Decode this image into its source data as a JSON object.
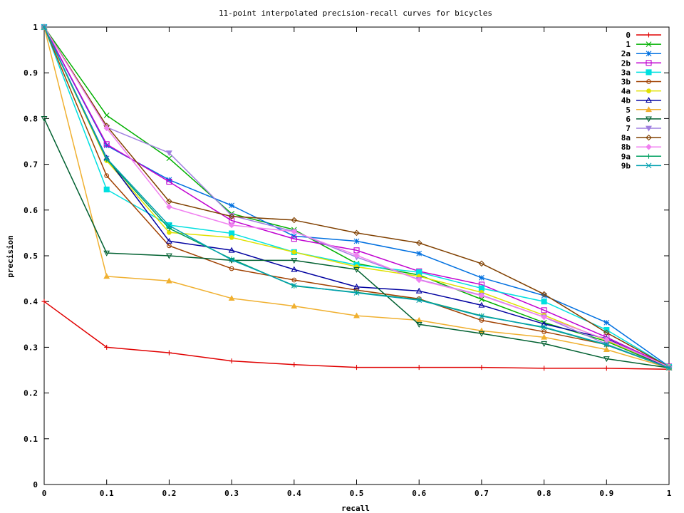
{
  "chart_data": {
    "type": "line",
    "title": "11-point interpolated precision-recall curves for bicycles",
    "xlabel": "recall",
    "ylabel": "precision",
    "xlim": [
      0,
      1
    ],
    "ylim": [
      0,
      1
    ],
    "x": [
      0,
      0.1,
      0.2,
      0.3,
      0.4,
      0.5,
      0.6,
      0.7,
      0.8,
      0.9,
      1
    ],
    "xticks": [
      "0",
      "0.1",
      "0.2",
      "0.3",
      "0.4",
      "0.5",
      "0.6",
      "0.7",
      "0.8",
      "0.9",
      "1"
    ],
    "yticks": [
      "0",
      "0.1",
      "0.2",
      "0.3",
      "0.4",
      "0.5",
      "0.6",
      "0.7",
      "0.8",
      "0.9",
      "1"
    ],
    "grid": false,
    "legend_position": "top-right",
    "series": [
      {
        "name": "0",
        "color": "#e00000",
        "marker": "plus",
        "values": [
          0.4,
          0.3,
          0.288,
          0.27,
          0.262,
          0.256,
          0.256,
          0.256,
          0.254,
          0.254,
          0.252
        ]
      },
      {
        "name": "1",
        "color": "#00b000",
        "marker": "cross",
        "values": [
          1.0,
          0.807,
          0.713,
          0.592,
          0.557,
          0.483,
          0.458,
          0.405,
          0.354,
          0.313,
          0.255
        ]
      },
      {
        "name": "2a",
        "color": "#0070e0",
        "marker": "star",
        "values": [
          1.0,
          0.741,
          0.666,
          0.61,
          0.543,
          0.532,
          0.505,
          0.452,
          0.413,
          0.354,
          0.258
        ]
      },
      {
        "name": "2b",
        "color": "#c000d0",
        "marker": "square",
        "values": [
          1.0,
          0.744,
          0.662,
          0.577,
          0.537,
          0.512,
          0.466,
          0.437,
          0.381,
          0.322,
          0.258
        ]
      },
      {
        "name": "3a",
        "color": "#00e0e0",
        "marker": "filled-square",
        "values": [
          1.0,
          0.645,
          0.567,
          0.549,
          0.508,
          0.48,
          0.464,
          0.429,
          0.4,
          0.338,
          0.257
        ]
      },
      {
        "name": "3b",
        "color": "#a04000",
        "marker": "circle",
        "values": [
          1.0,
          0.675,
          0.522,
          0.472,
          0.447,
          0.425,
          0.406,
          0.359,
          0.334,
          0.306,
          0.256
        ]
      },
      {
        "name": "4a",
        "color": "#e0e000",
        "marker": "filled-circle",
        "values": [
          1.0,
          0.708,
          0.551,
          0.54,
          0.508,
          0.476,
          0.455,
          0.42,
          0.37,
          0.315,
          0.258
        ]
      },
      {
        "name": "4b",
        "color": "#0000a0",
        "marker": "triangle",
        "values": [
          1.0,
          0.714,
          0.532,
          0.512,
          0.47,
          0.432,
          0.423,
          0.392,
          0.351,
          0.319,
          0.255
        ]
      },
      {
        "name": "5",
        "color": "#f0b030",
        "marker": "filled-triangle",
        "values": [
          1.0,
          0.455,
          0.445,
          0.407,
          0.39,
          0.369,
          0.359,
          0.336,
          0.322,
          0.295,
          0.255
        ]
      },
      {
        "name": "6",
        "color": "#006030",
        "marker": "triangle-down",
        "values": [
          0.8,
          0.506,
          0.5,
          0.49,
          0.49,
          0.47,
          0.35,
          0.33,
          0.308,
          0.275,
          0.255
        ]
      },
      {
        "name": "7",
        "color": "#a080e0",
        "marker": "filled-triangle-down",
        "values": [
          1.0,
          0.781,
          0.725,
          0.588,
          0.553,
          0.497,
          0.448,
          0.414,
          0.366,
          0.307,
          0.255
        ]
      },
      {
        "name": "8a",
        "color": "#804000",
        "marker": "diamond",
        "values": [
          1.0,
          0.784,
          0.619,
          0.586,
          0.578,
          0.55,
          0.528,
          0.483,
          0.416,
          0.332,
          0.257
        ]
      },
      {
        "name": "8b",
        "color": "#f080f0",
        "marker": "filled-diamond",
        "values": [
          1.0,
          0.779,
          0.607,
          0.567,
          0.553,
          0.501,
          0.447,
          0.413,
          0.366,
          0.317,
          0.257
        ]
      },
      {
        "name": "9a",
        "color": "#00a060",
        "marker": "plus",
        "values": [
          1.0,
          0.711,
          0.56,
          0.493,
          0.434,
          0.42,
          0.404,
          0.369,
          0.343,
          0.305,
          0.255
        ]
      },
      {
        "name": "9b",
        "color": "#00a0b0",
        "marker": "cross",
        "values": [
          1.0,
          0.713,
          0.566,
          0.491,
          0.435,
          0.419,
          0.403,
          0.368,
          0.344,
          0.306,
          0.255
        ]
      }
    ]
  }
}
